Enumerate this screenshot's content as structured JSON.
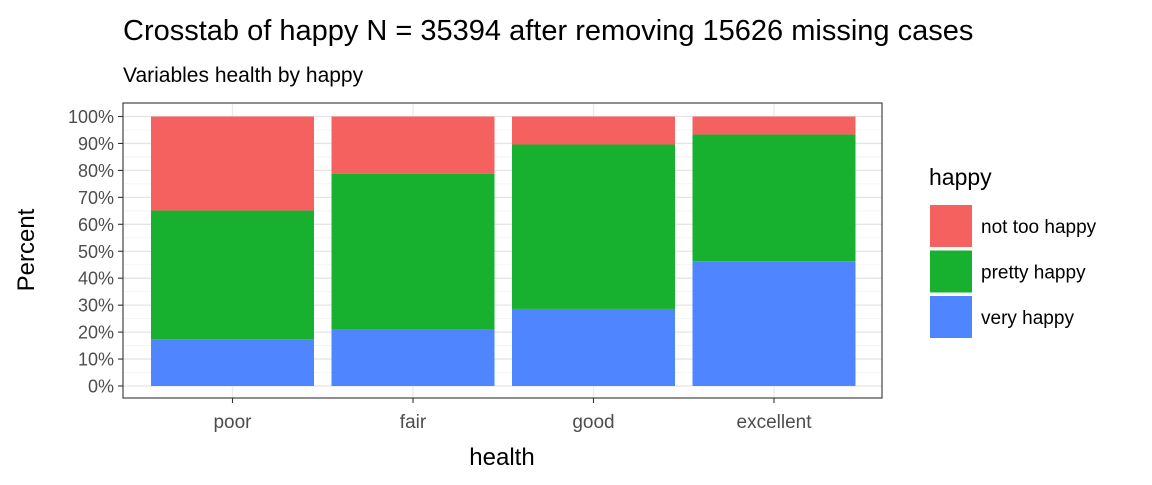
{
  "chart_data": {
    "type": "bar",
    "stacked": true,
    "title": "Crosstab of happy N = 35394 after removing 15626 missing cases",
    "subtitle": "Variables health by happy",
    "xlabel": "health",
    "ylabel": "Percent",
    "categories": [
      "poor",
      "fair",
      "good",
      "excellent"
    ],
    "y_ticks": [
      "0%",
      "10%",
      "20%",
      "30%",
      "40%",
      "50%",
      "60%",
      "70%",
      "80%",
      "90%",
      "100%"
    ],
    "ylim": [
      0,
      100
    ],
    "grid": true,
    "legend_title": "happy",
    "legend_position": "right",
    "series": [
      {
        "name": "very happy",
        "color": "#4F86FF",
        "values": [
          17.4,
          21.0,
          28.6,
          46.3
        ]
      },
      {
        "name": "pretty happy",
        "color": "#17B12F",
        "values": [
          47.7,
          57.8,
          61.0,
          47.0
        ]
      },
      {
        "name": "not too happy",
        "color": "#F4615F",
        "values": [
          34.9,
          21.2,
          10.4,
          6.7
        ]
      }
    ],
    "legend_order": [
      "not too happy",
      "pretty happy",
      "very happy"
    ]
  }
}
